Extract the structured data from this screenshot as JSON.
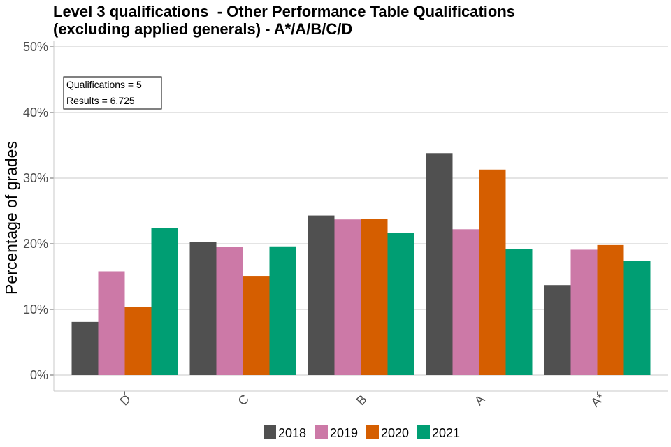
{
  "chart_data": {
    "type": "bar",
    "title_lines": [
      "Level 3 qualifications  - Other Performance Table Qualifications",
      "(excluding applied generals) - A*/A/B/C/D"
    ],
    "xlabel": "",
    "ylabel": "Percentage of grades",
    "ylim": [
      0,
      50
    ],
    "yticks": [
      0,
      10,
      20,
      30,
      40,
      50
    ],
    "ytick_labels": [
      "0%",
      "10%",
      "20%",
      "30%",
      "40%",
      "50%"
    ],
    "categories": [
      "D",
      "C",
      "B",
      "A",
      "A*"
    ],
    "series": [
      {
        "name": "2018",
        "color": "#505050",
        "values": [
          8.1,
          20.3,
          24.3,
          33.8,
          13.7
        ]
      },
      {
        "name": "2019",
        "color": "#CC79A7",
        "values": [
          15.8,
          19.5,
          23.7,
          22.2,
          19.1
        ]
      },
      {
        "name": "2020",
        "color": "#D55E00",
        "values": [
          10.4,
          15.1,
          23.8,
          31.3,
          19.8
        ]
      },
      {
        "name": "2021",
        "color": "#009E73",
        "values": [
          22.4,
          19.6,
          21.6,
          19.2,
          17.4
        ]
      }
    ],
    "annotation_lines": [
      "Qualifications = 5",
      "Results = 6,725"
    ],
    "legend_position": "bottom",
    "grid": true
  }
}
